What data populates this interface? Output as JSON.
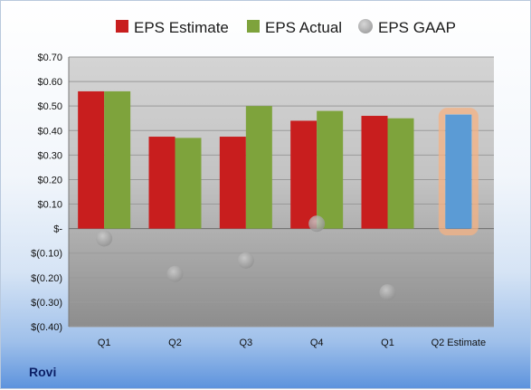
{
  "company": "Rovi",
  "colors": {
    "estimate": "#c81e1e",
    "actual": "#7ea33c",
    "gaap": "#a9a9a9",
    "q2_estimate_fill": "#5b9bd5",
    "q2_estimate_glow": "#f4b183"
  },
  "chart_data": {
    "type": "bar",
    "categories": [
      "Q1",
      "Q2",
      "Q3",
      "Q4",
      "Q1",
      "Q2 Estimate"
    ],
    "series": [
      {
        "name": "EPS Estimate",
        "values": [
          0.56,
          0.375,
          0.375,
          0.44,
          0.46,
          null
        ]
      },
      {
        "name": "EPS Actual",
        "values": [
          0.56,
          0.37,
          0.5,
          0.48,
          0.45,
          0.465
        ]
      },
      {
        "name": "EPS GAAP",
        "type": "scatter",
        "values": [
          -0.04,
          -0.185,
          -0.13,
          0.02,
          -0.26,
          null
        ]
      }
    ],
    "ylim": [
      -0.4,
      0.7
    ],
    "yticks": [
      0.7,
      0.6,
      0.5,
      0.4,
      0.3,
      0.2,
      0.1,
      0,
      -0.1,
      -0.2,
      -0.3,
      -0.4
    ],
    "ytick_labels": [
      "$0.70",
      "$0.60",
      "$0.50",
      "$0.40",
      "$0.30",
      "$0.20",
      "$0.10",
      "$-",
      "$(0.10)",
      "$(0.20)",
      "$(0.30)",
      "$(0.40)"
    ],
    "legend": "top",
    "grid": true
  }
}
